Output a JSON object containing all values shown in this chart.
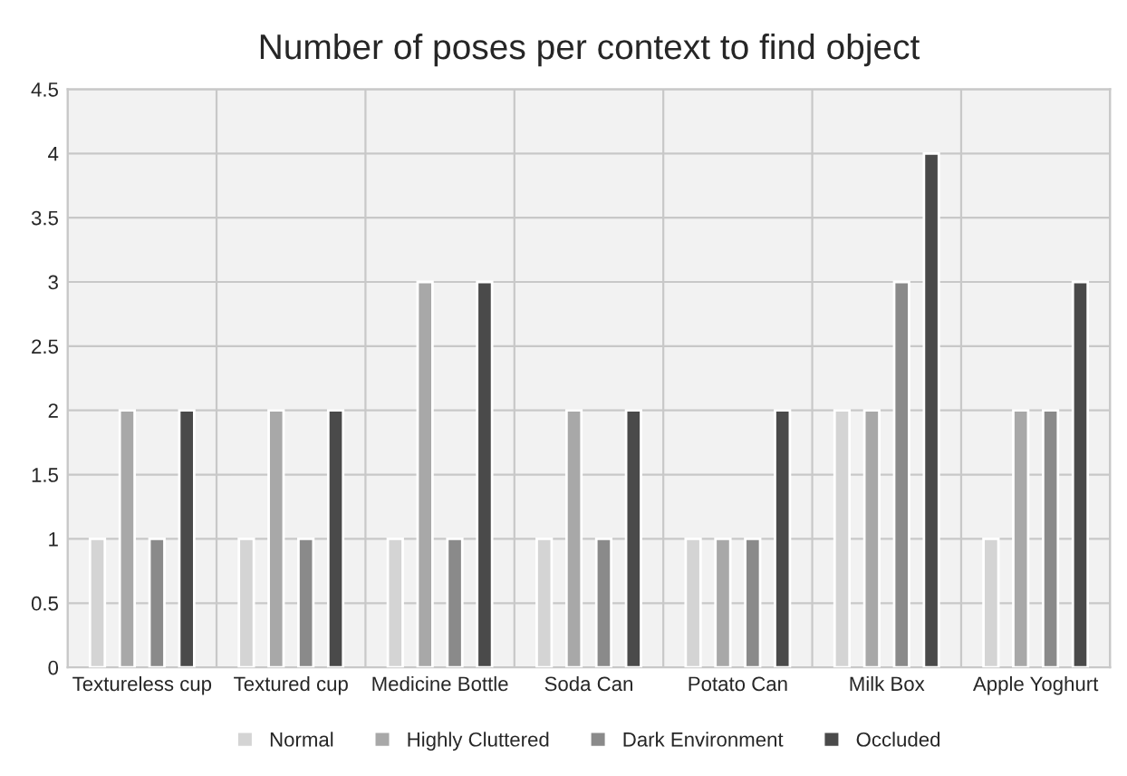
{
  "chart_data": {
    "type": "bar",
    "title": "Number of poses per context to find object",
    "categories": [
      "Textureless cup",
      "Textured cup",
      "Medicine Bottle",
      "Soda Can",
      "Potato Can",
      "Milk Box",
      "Apple Yoghurt"
    ],
    "series": [
      {
        "name": "Normal",
        "color": "#d4d4d4",
        "values": [
          1,
          1,
          1,
          1,
          1,
          2,
          1
        ]
      },
      {
        "name": "Highly Cluttered",
        "color": "#a8a8a8",
        "values": [
          2,
          2,
          3,
          2,
          1,
          2,
          2
        ]
      },
      {
        "name": "Dark Environment",
        "color": "#8a8a8a",
        "values": [
          1,
          1,
          1,
          1,
          1,
          3,
          2
        ]
      },
      {
        "name": "Occluded",
        "color": "#4a4a4a",
        "values": [
          2,
          2,
          3,
          2,
          2,
          4,
          3
        ]
      }
    ],
    "ylim": [
      0,
      4.5
    ],
    "yticks": [
      0,
      0.5,
      1,
      1.5,
      2,
      2.5,
      3,
      3.5,
      4,
      4.5
    ],
    "grid": true,
    "legend": "bottom"
  }
}
